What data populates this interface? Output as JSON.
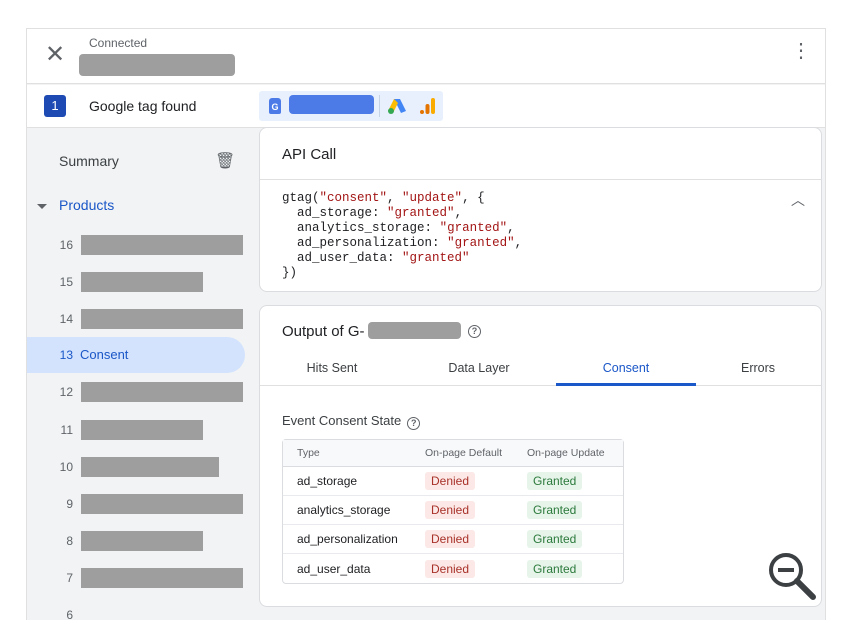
{
  "header": {
    "status": "Connected",
    "close_icon": "close-icon",
    "menu_icon": "more-vert-icon"
  },
  "tag_row": {
    "count": "1",
    "label": "Google tag found",
    "icons": [
      "google-tag-icon",
      "google-ads-icon",
      "google-analytics-icon"
    ]
  },
  "sidebar": {
    "summary": "Summary",
    "products": "Products",
    "items": [
      {
        "num": "16"
      },
      {
        "num": "15"
      },
      {
        "num": "14"
      },
      {
        "num": "13",
        "label": "Consent",
        "selected": true
      },
      {
        "num": "12"
      },
      {
        "num": "11"
      },
      {
        "num": "10"
      },
      {
        "num": "9"
      },
      {
        "num": "8"
      },
      {
        "num": "7"
      },
      {
        "num": "6"
      }
    ]
  },
  "api_call": {
    "title": "API Call",
    "code": {
      "fn": "gtag(",
      "a1": "\"consent\"",
      "a2": "\"update\"",
      "keys": [
        {
          "k": "ad_storage",
          "v": "\"granted\""
        },
        {
          "k": "analytics_storage",
          "v": "\"granted\""
        },
        {
          "k": "ad_personalization",
          "v": "\"granted\""
        },
        {
          "k": "ad_user_data",
          "v": "\"granted\""
        }
      ]
    }
  },
  "output": {
    "title": "Output of G-",
    "tabs": [
      "Hits Sent",
      "Data Layer",
      "Consent",
      "Errors"
    ],
    "active_tab": "Consent",
    "section": "Event Consent State",
    "columns": [
      "Type",
      "On-page Default",
      "On-page Update"
    ],
    "rows": [
      [
        "ad_storage",
        "Denied",
        "Granted"
      ],
      [
        "analytics_storage",
        "Denied",
        "Granted"
      ],
      [
        "ad_personalization",
        "Denied",
        "Granted"
      ],
      [
        "ad_user_data",
        "Denied",
        "Granted"
      ]
    ]
  },
  "colors": {
    "accent": "#1a57c8",
    "denied_bg": "#fce8e6",
    "granted_bg": "#e6f4ea"
  }
}
